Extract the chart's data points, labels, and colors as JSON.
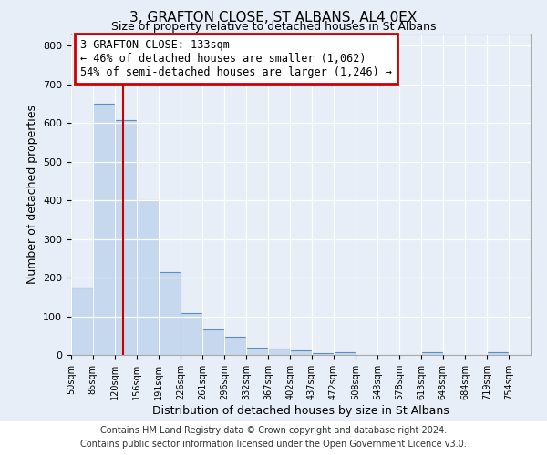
{
  "title": "3, GRAFTON CLOSE, ST ALBANS, AL4 0EX",
  "subtitle": "Size of property relative to detached houses in St Albans",
  "xlabel": "Distribution of detached houses by size in St Albans",
  "ylabel": "Number of detached properties",
  "bin_edges": [
    50,
    85,
    120,
    156,
    191,
    226,
    261,
    296,
    332,
    367,
    402,
    437,
    472,
    508,
    543,
    578,
    613,
    648,
    684,
    719,
    754
  ],
  "bar_heights": [
    175,
    650,
    608,
    400,
    215,
    108,
    65,
    48,
    18,
    17,
    12,
    5,
    8,
    0,
    0,
    0,
    8,
    0,
    0,
    8,
    0
  ],
  "bar_color": "#c5d8ed",
  "bar_edge_color": "#5a8fc0",
  "property_size": 133,
  "red_line_color": "#cc0000",
  "annotation_line1": "3 GRAFTON CLOSE: 133sqm",
  "annotation_line2": "← 46% of detached houses are smaller (1,062)",
  "annotation_line3": "54% of semi-detached houses are larger (1,246) →",
  "annotation_box_color": "#ffffff",
  "annotation_box_edge_color": "#cc0000",
  "ylim": [
    0,
    830
  ],
  "yticks": [
    0,
    100,
    200,
    300,
    400,
    500,
    600,
    700,
    800
  ],
  "background_color": "#e8eef7",
  "grid_color": "#ffffff",
  "footnote1": "Contains HM Land Registry data © Crown copyright and database right 2024.",
  "footnote2": "Contains public sector information licensed under the Open Government Licence v3.0.",
  "title_fontsize": 11,
  "subtitle_fontsize": 9,
  "footnote_bg": "#ffffff"
}
